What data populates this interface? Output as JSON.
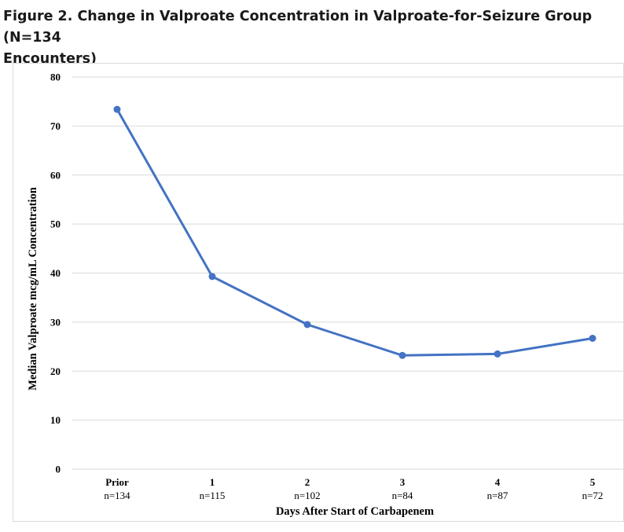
{
  "figure": {
    "title_line1": "Figure 2. Change in Valproate Concentration in Valproate-for-Seizure Group (N=134",
    "title_line2": "Encounters)"
  },
  "chart_data": {
    "type": "line",
    "title": "Figure 2. Change in Valproate Concentration in Valproate-for-Seizure Group (N=134 Encounters)",
    "xlabel": "Days After Start of Carbapenem",
    "ylabel": "Median Valproate mcg/mL Concentration",
    "categories": [
      "Prior",
      "1",
      "2",
      "3",
      "4",
      "5"
    ],
    "sample_sizes": [
      "n=134",
      "n=115",
      "n=102",
      "n=84",
      "n=87",
      "n=72"
    ],
    "series": [
      {
        "name": "Median valproate concentration",
        "values": [
          73.4,
          39.3,
          29.5,
          23.2,
          23.5,
          26.7
        ]
      }
    ],
    "ylim": [
      0,
      80
    ],
    "yticks": [
      0,
      10,
      20,
      30,
      40,
      50,
      60,
      70,
      80
    ],
    "grid": true,
    "line_color": "#4472C4",
    "grid_color": "#d9d9d9"
  }
}
